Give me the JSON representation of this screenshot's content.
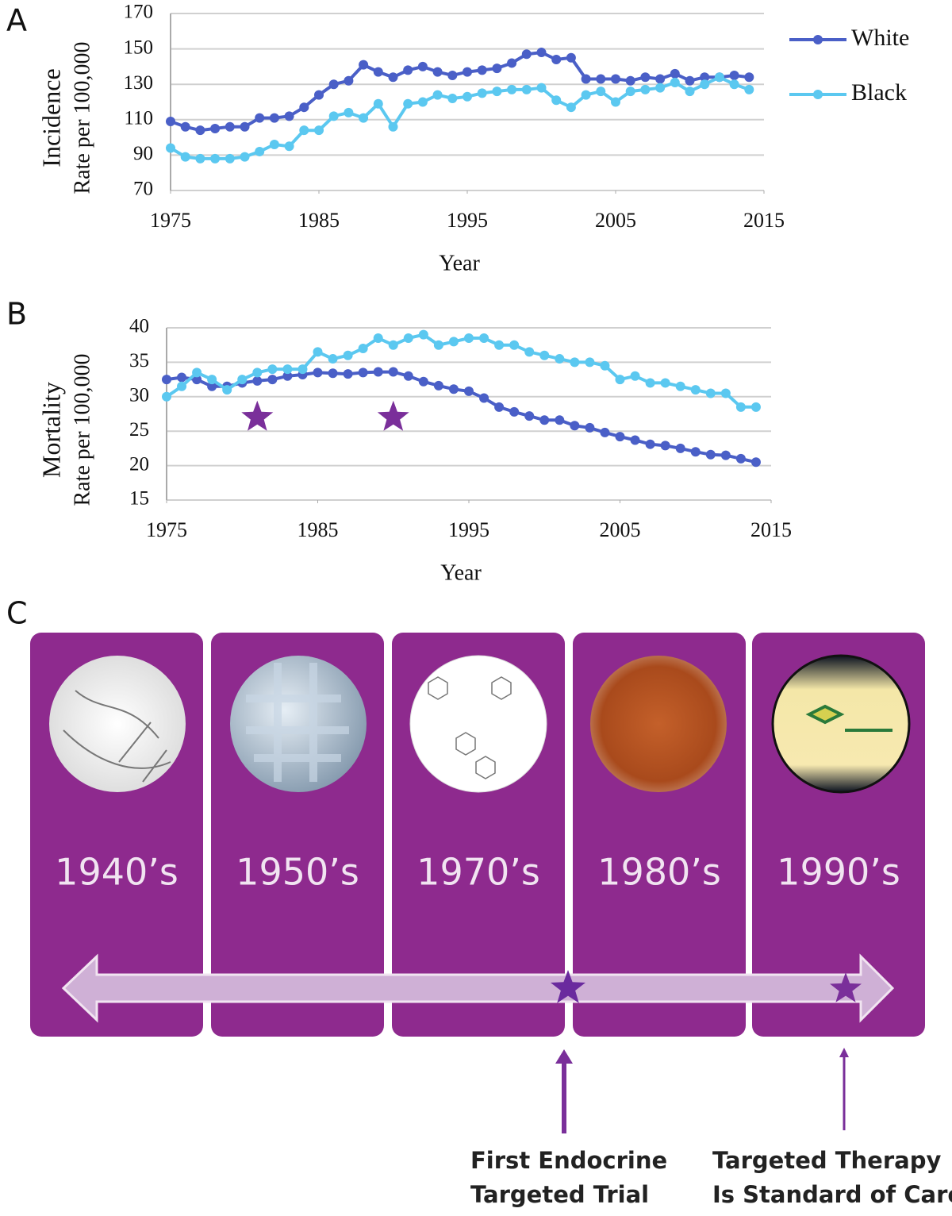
{
  "chart_data": [
    {
      "type": "line",
      "panel_label": "A",
      "ylabel": "Incidence",
      "ylabel_sub": "Rate per 100,000",
      "xlabel": "Year",
      "x": [
        1975,
        1976,
        1977,
        1978,
        1979,
        1980,
        1981,
        1982,
        1983,
        1984,
        1985,
        1986,
        1987,
        1988,
        1989,
        1990,
        1991,
        1992,
        1993,
        1994,
        1995,
        1996,
        1997,
        1998,
        1999,
        2000,
        2001,
        2002,
        2003,
        2004,
        2005,
        2006,
        2007,
        2008,
        2009,
        2010,
        2011,
        2012,
        2013,
        2014
      ],
      "xlim": [
        1975,
        2015
      ],
      "xticks": [
        1975,
        1985,
        1995,
        2005,
        2015
      ],
      "ylim": [
        70,
        170
      ],
      "yticks": [
        70,
        90,
        110,
        130,
        150,
        170
      ],
      "grid": true,
      "legend": "right",
      "series": [
        {
          "name": "White",
          "color": "#4a5fc7",
          "values": [
            109,
            106,
            104,
            105,
            106,
            106,
            111,
            111,
            112,
            117,
            124,
            130,
            132,
            141,
            137,
            134,
            138,
            140,
            137,
            135,
            137,
            138,
            139,
            142,
            147,
            148,
            144,
            145,
            133,
            133,
            133,
            132,
            134,
            133,
            136,
            132,
            134,
            134,
            135,
            134
          ]
        },
        {
          "name": "Black",
          "color": "#5bc8f0",
          "values": [
            94,
            89,
            88,
            88,
            88,
            89,
            92,
            96,
            95,
            104,
            104,
            112,
            114,
            111,
            119,
            106,
            119,
            120,
            124,
            122,
            123,
            125,
            126,
            127,
            127,
            128,
            121,
            117,
            124,
            126,
            120,
            126,
            127,
            128,
            131,
            126,
            130,
            134,
            130,
            127
          ]
        }
      ]
    },
    {
      "type": "line",
      "panel_label": "B",
      "ylabel": "Mortality",
      "ylabel_sub": "Rate per 100,000",
      "xlabel": "Year",
      "x": [
        1975,
        1976,
        1977,
        1978,
        1979,
        1980,
        1981,
        1982,
        1983,
        1984,
        1985,
        1986,
        1987,
        1988,
        1989,
        1990,
        1991,
        1992,
        1993,
        1994,
        1995,
        1996,
        1997,
        1998,
        1999,
        2000,
        2001,
        2002,
        2003,
        2004,
        2005,
        2006,
        2007,
        2008,
        2009,
        2010,
        2011,
        2012,
        2013,
        2014
      ],
      "xlim": [
        1975,
        2015
      ],
      "xticks": [
        1975,
        1985,
        1995,
        2005,
        2015
      ],
      "ylim": [
        15,
        40
      ],
      "yticks": [
        15,
        20,
        25,
        30,
        35,
        40
      ],
      "grid": true,
      "series": [
        {
          "color": "#4a5fc7",
          "values": [
            32.5,
            32.8,
            32.5,
            31.5,
            31.5,
            32,
            32.3,
            32.5,
            33,
            33.2,
            33.5,
            33.4,
            33.3,
            33.5,
            33.6,
            33.6,
            33,
            32.2,
            31.6,
            31.1,
            30.8,
            29.8,
            28.5,
            27.8,
            27.2,
            26.6,
            26.6,
            25.8,
            25.5,
            24.8,
            24.2,
            23.7,
            23.1,
            22.9,
            22.5,
            22,
            21.6,
            21.5,
            21,
            20.5
          ]
        },
        {
          "color": "#5bc8f0",
          "values": [
            30,
            31.5,
            33.5,
            32.5,
            31,
            32.5,
            33.5,
            34,
            34,
            34,
            36.5,
            35.5,
            36,
            37,
            38.5,
            37.5,
            38.5,
            39,
            37.5,
            38,
            38.5,
            38.5,
            37.5,
            37.5,
            36.5,
            36,
            35.5,
            35,
            35,
            34.5,
            32.5,
            33,
            32,
            32,
            31.5,
            31,
            30.5,
            30.5,
            28.5,
            28.5
          ]
        }
      ],
      "stars": {
        "color": "#7a2f9a",
        "x": [
          1981,
          1990
        ],
        "y": [
          27,
          27
        ]
      }
    }
  ],
  "panel_c": {
    "label": "C",
    "eras": [
      "1940’s",
      "1950’s",
      "1970’s",
      "1980’s",
      "1990’s"
    ],
    "callouts": [
      {
        "lines": [
          "First Endocrine",
          "Targeted Trial"
        ]
      },
      {
        "lines": [
          "Targeted Therapy",
          "Is Standard of Care"
        ]
      }
    ]
  }
}
